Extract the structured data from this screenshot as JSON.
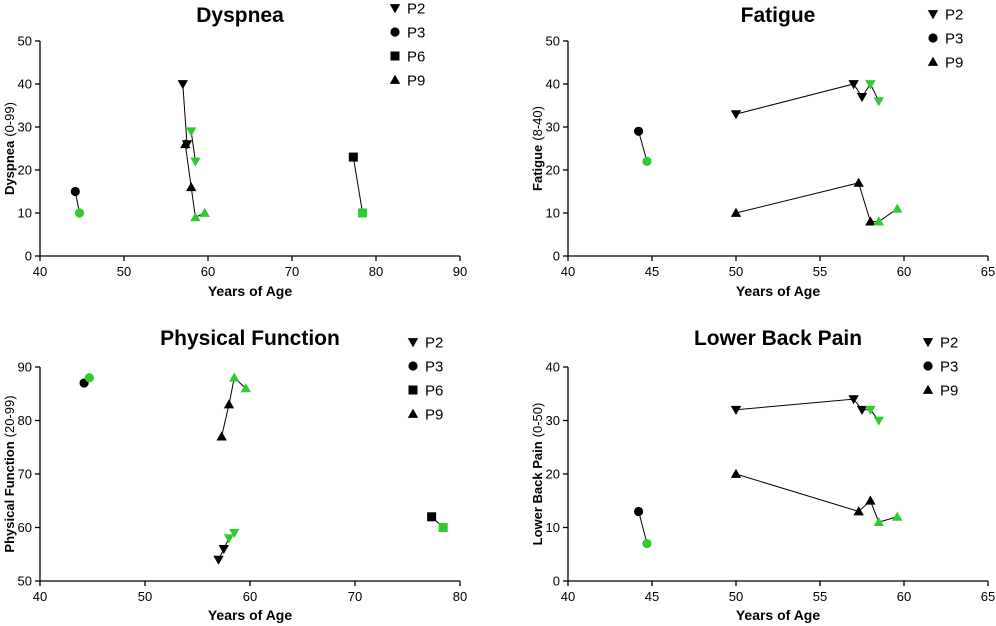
{
  "colors": {
    "black": "#000000",
    "green": "#2ecc2e"
  },
  "chart_data": [
    {
      "type": "scatter",
      "title": "Dyspnea",
      "xlabel": "Years of Age",
      "ylabel_main": "Dyspnea",
      "ylabel_range": "(0-99)",
      "xlim": [
        40,
        90
      ],
      "ylim": [
        0,
        50
      ],
      "xticks": [
        "40",
        "50",
        "60",
        "70",
        "80",
        "90"
      ],
      "yticks": [
        "0",
        "10",
        "20",
        "30",
        "40",
        "50"
      ],
      "series": [
        {
          "name": "P2",
          "marker": "tri-down",
          "segments": [
            [
              {
                "x": 57.0,
                "y": 40,
                "c": "black"
              },
              {
                "x": 57.5,
                "y": 26,
                "c": "black"
              }
            ],
            [
              {
                "x": 58.0,
                "y": 29,
                "c": "green"
              },
              {
                "x": 58.5,
                "y": 22,
                "c": "green"
              }
            ]
          ]
        },
        {
          "name": "P3",
          "marker": "circle",
          "segments": [
            [
              {
                "x": 44.2,
                "y": 15,
                "c": "black"
              },
              {
                "x": 44.7,
                "y": 10,
                "c": "green"
              }
            ]
          ]
        },
        {
          "name": "P6",
          "marker": "square",
          "segments": [
            [
              {
                "x": 77.3,
                "y": 23,
                "c": "black"
              },
              {
                "x": 78.4,
                "y": 10,
                "c": "green"
              }
            ]
          ]
        },
        {
          "name": "P9",
          "marker": "tri-up",
          "segments": [
            [
              {
                "x": 57.3,
                "y": 26,
                "c": "black"
              },
              {
                "x": 58.0,
                "y": 16,
                "c": "black"
              },
              {
                "x": 58.5,
                "y": 9,
                "c": "green"
              },
              {
                "x": 59.6,
                "y": 10,
                "c": "green"
              }
            ]
          ]
        }
      ]
    },
    {
      "type": "scatter",
      "title": "Fatigue",
      "xlabel": "Years of Age",
      "ylabel_main": "Fatigue",
      "ylabel_range": "(8-40)",
      "xlim": [
        40,
        65
      ],
      "ylim": [
        0,
        50
      ],
      "xticks": [
        "40",
        "45",
        "50",
        "55",
        "60",
        "65"
      ],
      "yticks": [
        "0",
        "10",
        "20",
        "30",
        "40",
        "50"
      ],
      "series": [
        {
          "name": "P2",
          "marker": "tri-down",
          "segments": [
            [
              {
                "x": 50.0,
                "y": 33,
                "c": "black"
              },
              {
                "x": 57.0,
                "y": 40,
                "c": "black"
              },
              {
                "x": 57.5,
                "y": 37,
                "c": "black"
              },
              {
                "x": 58.0,
                "y": 40,
                "c": "green"
              },
              {
                "x": 58.5,
                "y": 36,
                "c": "green"
              }
            ]
          ]
        },
        {
          "name": "P3",
          "marker": "circle",
          "segments": [
            [
              {
                "x": 44.2,
                "y": 29,
                "c": "black"
              },
              {
                "x": 44.7,
                "y": 22,
                "c": "green"
              }
            ]
          ]
        },
        {
          "name": "P9",
          "marker": "tri-up",
          "segments": [
            [
              {
                "x": 50.0,
                "y": 10,
                "c": "black"
              },
              {
                "x": 57.3,
                "y": 17,
                "c": "black"
              },
              {
                "x": 58.0,
                "y": 8,
                "c": "black"
              },
              {
                "x": 58.5,
                "y": 8,
                "c": "green"
              },
              {
                "x": 59.6,
                "y": 11,
                "c": "green"
              }
            ]
          ]
        }
      ]
    },
    {
      "type": "scatter",
      "title": "Physical Function",
      "xlabel": "Years of Age",
      "ylabel_main": "Physical Function",
      "ylabel_range": "(20-99)",
      "xlim": [
        40,
        80
      ],
      "ylim": [
        50,
        90
      ],
      "xticks": [
        "40",
        "50",
        "60",
        "70",
        "80"
      ],
      "yticks": [
        "50",
        "60",
        "70",
        "80",
        "90"
      ],
      "series": [
        {
          "name": "P2",
          "marker": "tri-down",
          "segments": [
            [
              {
                "x": 57.0,
                "y": 54,
                "c": "black"
              },
              {
                "x": 57.5,
                "y": 56,
                "c": "black"
              },
              {
                "x": 58.0,
                "y": 58,
                "c": "green"
              },
              {
                "x": 58.5,
                "y": 59,
                "c": "green"
              }
            ]
          ]
        },
        {
          "name": "P3",
          "marker": "circle",
          "segments": [
            [
              {
                "x": 44.2,
                "y": 87,
                "c": "black"
              },
              {
                "x": 44.7,
                "y": 88,
                "c": "green"
              }
            ]
          ]
        },
        {
          "name": "P6",
          "marker": "square",
          "segments": [
            [
              {
                "x": 77.3,
                "y": 62,
                "c": "black"
              },
              {
                "x": 78.4,
                "y": 60,
                "c": "green"
              }
            ]
          ]
        },
        {
          "name": "P9",
          "marker": "tri-up",
          "segments": [
            [
              {
                "x": 57.3,
                "y": 77,
                "c": "black"
              },
              {
                "x": 58.0,
                "y": 83,
                "c": "black"
              },
              {
                "x": 58.5,
                "y": 88,
                "c": "green"
              },
              {
                "x": 59.6,
                "y": 86,
                "c": "green"
              }
            ]
          ]
        }
      ]
    },
    {
      "type": "scatter",
      "title": "Lower Back Pain",
      "xlabel": "Years of Age",
      "ylabel_main": "Lower Back Pain",
      "ylabel_range": "(0-50)",
      "xlim": [
        40,
        65
      ],
      "ylim": [
        0,
        40
      ],
      "xticks": [
        "40",
        "45",
        "50",
        "55",
        "60",
        "65"
      ],
      "yticks": [
        "0",
        "10",
        "20",
        "30",
        "40"
      ],
      "series": [
        {
          "name": "P2",
          "marker": "tri-down",
          "segments": [
            [
              {
                "x": 50.0,
                "y": 32,
                "c": "black"
              },
              {
                "x": 57.0,
                "y": 34,
                "c": "black"
              },
              {
                "x": 57.5,
                "y": 32,
                "c": "black"
              },
              {
                "x": 58.0,
                "y": 32,
                "c": "green"
              },
              {
                "x": 58.5,
                "y": 30,
                "c": "green"
              }
            ]
          ]
        },
        {
          "name": "P3",
          "marker": "circle",
          "segments": [
            [
              {
                "x": 44.2,
                "y": 13,
                "c": "black"
              },
              {
                "x": 44.7,
                "y": 7,
                "c": "green"
              }
            ]
          ]
        },
        {
          "name": "P9",
          "marker": "tri-up",
          "segments": [
            [
              {
                "x": 50.0,
                "y": 20,
                "c": "black"
              },
              {
                "x": 57.3,
                "y": 13,
                "c": "black"
              },
              {
                "x": 58.0,
                "y": 15,
                "c": "black"
              },
              {
                "x": 58.5,
                "y": 11,
                "c": "green"
              },
              {
                "x": 59.6,
                "y": 12,
                "c": "green"
              }
            ]
          ]
        }
      ]
    }
  ]
}
